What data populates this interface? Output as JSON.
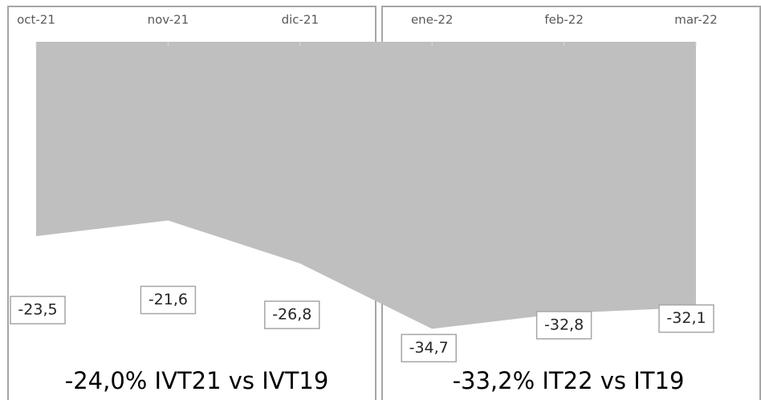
{
  "chart_data": {
    "type": "area",
    "categories": [
      "oct-21",
      "nov-21",
      "dic-21",
      "ene-22",
      "feb-22",
      "mar-22"
    ],
    "values": [
      -23.5,
      -21.6,
      -26.8,
      -34.7,
      -32.8,
      -32.1
    ],
    "value_labels": [
      "-23,5",
      "-21,6",
      "-26,8",
      "-34,7",
      "-32,8",
      "-32,1"
    ],
    "color": "#bfbfbf",
    "ylim": [
      -40,
      0
    ],
    "annotations": [
      "-24,0% IVT21 vs IVT19",
      "-33,2% IT22 vs IT19"
    ]
  }
}
